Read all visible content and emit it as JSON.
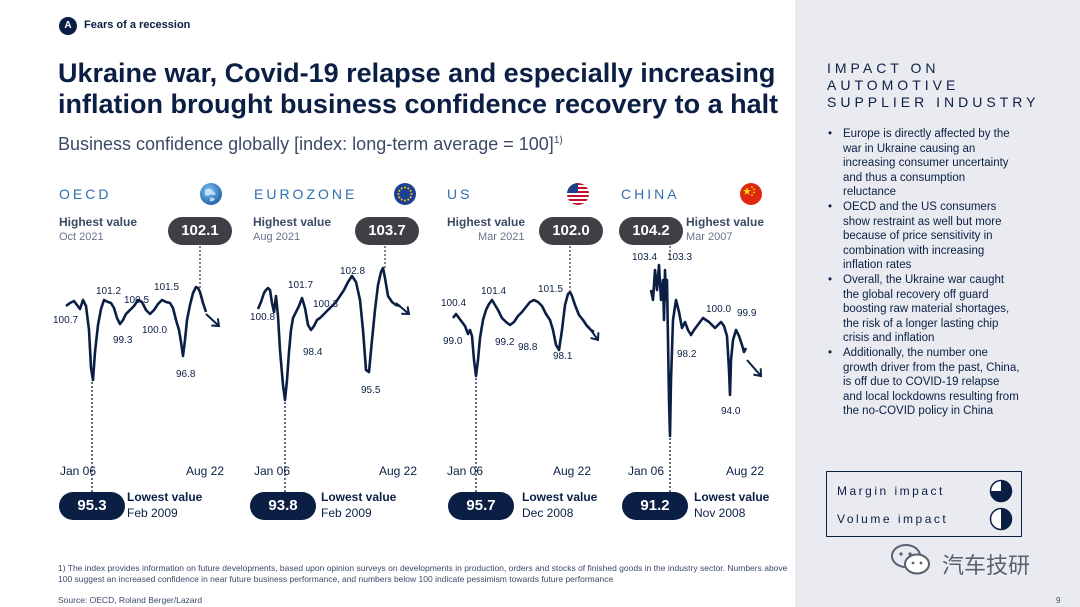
{
  "header": {
    "badge": "A",
    "section": "Fears of a recession"
  },
  "title": "Ukraine war, Covid-19 relapse and especially increasing inflation brought business confidence recovery to a halt",
  "subtitle": "Business confidence globally [index: long-term average = 100]",
  "subtitle_footnote_mark": "1)",
  "labels": {
    "highest": "Highest value",
    "lowest": "Lowest value",
    "start": "Jan 06",
    "end": "Aug 22"
  },
  "panels": [
    {
      "name": "OECD",
      "highest": "102.1",
      "highest_date": "Oct 2021",
      "lowest": "95.3",
      "lowest_date": "Feb 2009",
      "flag_icon": "globe-icon"
    },
    {
      "name": "EUROZONE",
      "highest": "103.7",
      "highest_date": "Aug 2021",
      "lowest": "93.8",
      "lowest_date": "Feb 2009",
      "flag_icon": "eu-flag-icon"
    },
    {
      "name": "US",
      "highest": "102.0",
      "highest_date": "Mar 2021",
      "lowest": "95.7",
      "lowest_date": "Dec 2008",
      "flag_icon": "us-flag-icon"
    },
    {
      "name": "CHINA",
      "highest": "104.2",
      "highest_date": "Mar 2007",
      "lowest": "91.2",
      "lowest_date": "Nov 2008",
      "flag_icon": "china-flag-icon"
    }
  ],
  "chart_data": [
    {
      "type": "line",
      "series_name": "OECD",
      "x_start": "Jan 06",
      "x_end": "Aug 22",
      "annotations": [
        "100.7",
        "101.2",
        "100.5",
        "99.3",
        "100.0",
        "101.5",
        "96.8"
      ],
      "highest": 102.1,
      "lowest": 95.3,
      "trend": "down"
    },
    {
      "type": "line",
      "series_name": "EUROZONE",
      "x_start": "Jan 06",
      "x_end": "Aug 22",
      "annotations": [
        "100.8",
        "101.7",
        "100.3",
        "98.4",
        "102.8",
        "95.5"
      ],
      "highest": 103.7,
      "lowest": 93.8,
      "trend": "down"
    },
    {
      "type": "line",
      "series_name": "US",
      "x_start": "Jan 06",
      "x_end": "Aug 22",
      "annotations": [
        "100.4",
        "99.0",
        "101.4",
        "99.2",
        "98.8",
        "101.5",
        "98.1"
      ],
      "highest": 102.0,
      "lowest": 95.7,
      "trend": "down"
    },
    {
      "type": "line",
      "series_name": "CHINA",
      "x_start": "Jan 06",
      "x_end": "Aug 22",
      "annotations": [
        "103.4",
        "103.3",
        "98.2",
        "100.0",
        "99.9",
        "94.0"
      ],
      "highest": 104.2,
      "lowest": 91.2,
      "trend": "down"
    }
  ],
  "sidebar": {
    "title": "IMPACT ON AUTOMOTIVE SUPPLIER INDUSTRY",
    "bullets": [
      "Europe is directly affected by the war in Ukraine causing an increasing consumer uncertainty and thus a consumption reluctance",
      "OECD and the US consumers show restraint as well but more because of price sensitivity in combination with increasing inflation rates",
      "Overall, the Ukraine war caught the global recovery off guard boosting raw material shortages, the risk of a longer lasting chip crisis and inflation",
      "Additionally, the number one growth driver from the past, China, is off due to COVID-19 relapse and local lockdowns resulting from the no-COVID policy in China"
    ],
    "impact": [
      {
        "label": "Margin impact",
        "level": 0.75
      },
      {
        "label": "Volume impact",
        "level": 0.5
      }
    ]
  },
  "footnote": "1) The index provides information on future developments, based upon opinion surveys on developments in production, orders and stocks of finished goods in the industry sector. Numbers above 100 suggest an increased confidence in near future business performance, and numbers below 100 indicate pessimism towards future performance",
  "source": "Source: OECD, Roland Berger/Lazard",
  "page_number": "9",
  "watermark": "汽车技研",
  "colors": {
    "navy": "#0b1f45",
    "accent_blue": "#2f6fb0",
    "pill_dark": "#3e4045",
    "sidebar_bg": "#e9ebf1"
  }
}
